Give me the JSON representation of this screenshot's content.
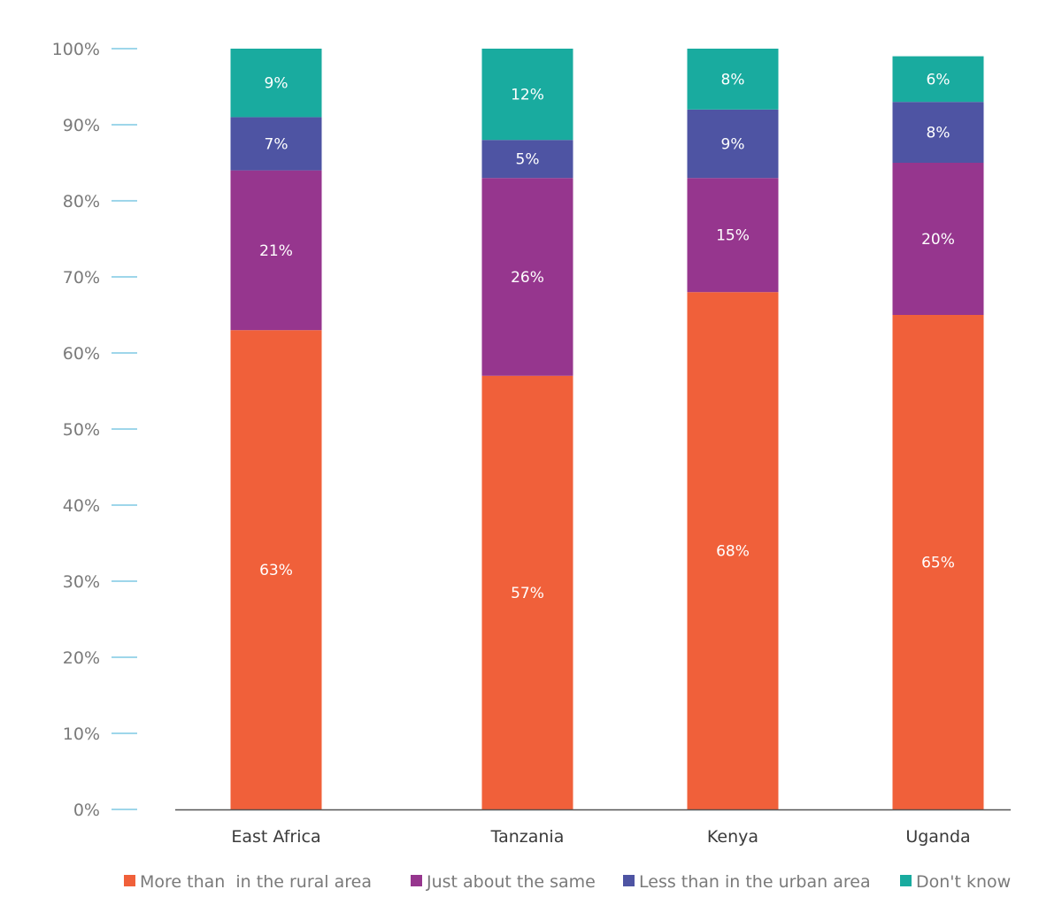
{
  "chart_data": {
    "type": "bar",
    "stacked": true,
    "categories": [
      "East Africa",
      "Tanzania",
      "Kenya",
      "Uganda"
    ],
    "series": [
      {
        "name": "More than  in the rural area",
        "color": "#f0603a",
        "values": [
          63,
          57,
          68,
          65
        ],
        "labels": [
          "63%",
          "57%",
          "68%",
          "65%"
        ]
      },
      {
        "name": "Just about the same",
        "color": "#96368e",
        "values": [
          21,
          26,
          15,
          20
        ],
        "labels": [
          "21%",
          "26%",
          "15%",
          "20%"
        ]
      },
      {
        "name": "Less than in the urban area",
        "color": "#4e54a3",
        "values": [
          7,
          5,
          9,
          8
        ],
        "labels": [
          "7%",
          "5%",
          "9%",
          "8%"
        ]
      },
      {
        "name": "Don't know",
        "color": "#19ab9f",
        "values": [
          9,
          12,
          8,
          6
        ],
        "labels": [
          "9%",
          "12%",
          "8%",
          "6%"
        ]
      }
    ],
    "y_ticks": [
      "0%",
      "10%",
      "20%",
      "30%",
      "40%",
      "50%",
      "60%",
      "70%",
      "80%",
      "90%",
      "100%"
    ],
    "ylim": [
      0,
      100
    ],
    "grid": false,
    "legend_position": "bottom",
    "colors": {
      "tick_mark": "#7ec8e3",
      "axis": "#555555"
    }
  }
}
